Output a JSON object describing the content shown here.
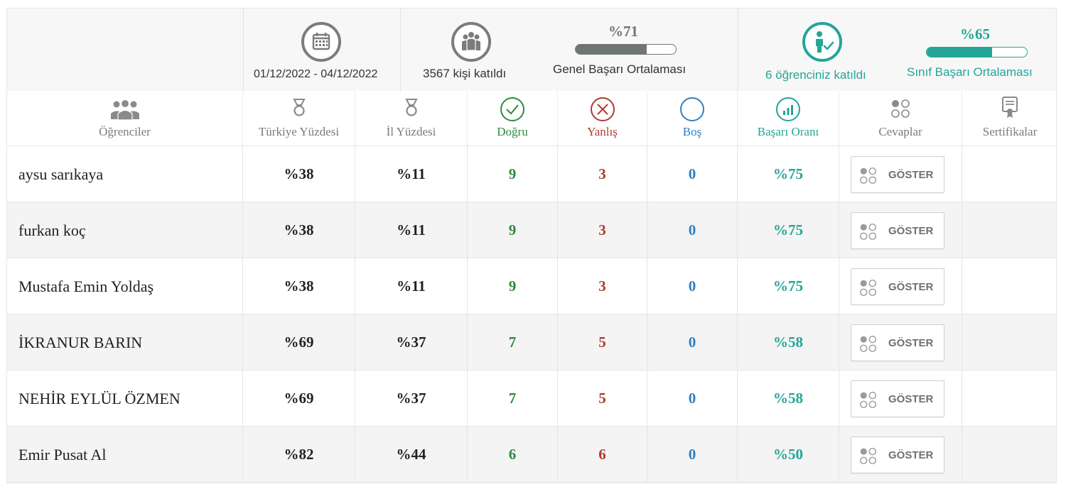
{
  "summary": {
    "date_range": "01/12/2022  - 04/12/2022",
    "participants": "3567 kişi katıldı",
    "general_avg": {
      "value": "%71",
      "label": "Genel Başarı Ortalaması",
      "fraction": 0.71
    },
    "my_students": "6 öğrenciniz katıldı",
    "class_avg": {
      "value": "%65",
      "label": "Sınıf Başarı Ortalaması",
      "fraction": 0.65
    },
    "icons": [
      "calendar-icon",
      "group-icon",
      "student-check-icon"
    ]
  },
  "columns": {
    "students": "Öğrenciler",
    "turkey_pct": "Türkiye Yüzdesi",
    "province_pct": "İl Yüzdesi",
    "correct": "Doğru",
    "wrong": "Yanlış",
    "empty": "Boş",
    "success_rate": "Başarı Oranı",
    "answers": "Cevaplar",
    "certificates": "Sertifikalar"
  },
  "colors": {
    "correct": "#2e8b3e",
    "wrong": "#b03a2e",
    "empty": "#2f7fc1",
    "success": "#24a597",
    "neutral": "#6f7572"
  },
  "show_label": "GÖSTER",
  "rows": [
    {
      "name": "aysu sarıkaya",
      "turkey": "%38",
      "province": "%11",
      "correct": "9",
      "wrong": "3",
      "empty": "0",
      "rate": "%75"
    },
    {
      "name": "furkan koç",
      "turkey": "%38",
      "province": "%11",
      "correct": "9",
      "wrong": "3",
      "empty": "0",
      "rate": "%75"
    },
    {
      "name": "Mustafa Emin Yoldaş",
      "turkey": "%38",
      "province": "%11",
      "correct": "9",
      "wrong": "3",
      "empty": "0",
      "rate": "%75"
    },
    {
      "name": "İKRANUR BARIN",
      "turkey": "%69",
      "province": "%37",
      "correct": "7",
      "wrong": "5",
      "empty": "0",
      "rate": "%58"
    },
    {
      "name": "NEHİR EYLÜL ÖZMEN",
      "turkey": "%69",
      "province": "%37",
      "correct": "7",
      "wrong": "5",
      "empty": "0",
      "rate": "%58"
    },
    {
      "name": "Emir Pusat Al",
      "turkey": "%82",
      "province": "%44",
      "correct": "6",
      "wrong": "6",
      "empty": "0",
      "rate": "%50"
    }
  ]
}
